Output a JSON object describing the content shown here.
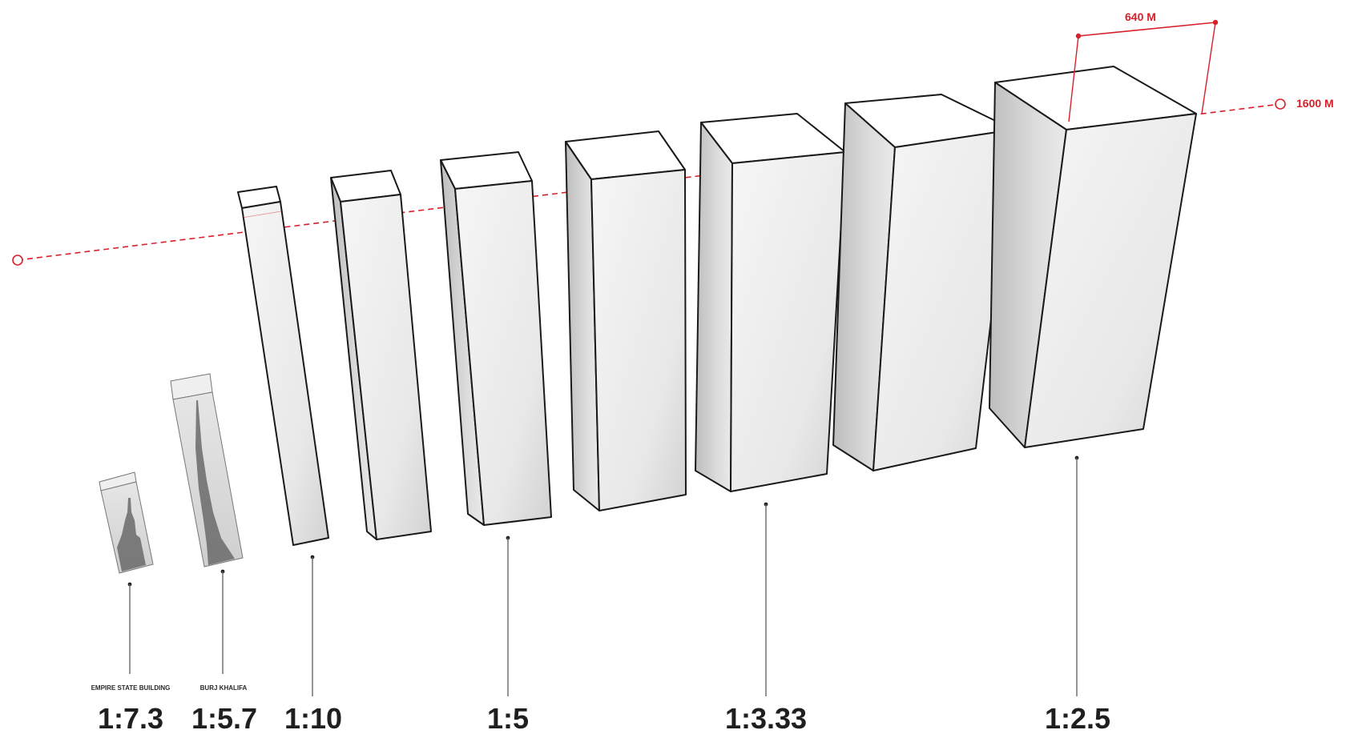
{
  "colors": {
    "accent": "#d9202a",
    "outline": "#1a1a1a",
    "leader": "#555555"
  },
  "annotations": {
    "height_line_label": "1600 M",
    "width_dimension_label": "640 M"
  },
  "buildings": [
    {
      "id": "empire-state",
      "name": "EMPIRE STATE BUILDING",
      "ratio": "1:7.3",
      "has_silhouette": true
    },
    {
      "id": "burj-khalifa",
      "name": "BURJ KHALIFA",
      "ratio": "1:5.7",
      "has_silhouette": true
    },
    {
      "id": "tower-1-10",
      "name": "",
      "ratio": "1:10",
      "has_silhouette": false
    },
    {
      "id": "tower-2",
      "name": "",
      "ratio": "",
      "has_silhouette": false
    },
    {
      "id": "tower-1-5",
      "name": "",
      "ratio": "1:5",
      "has_silhouette": false
    },
    {
      "id": "tower-4",
      "name": "",
      "ratio": "",
      "has_silhouette": false
    },
    {
      "id": "tower-1-333",
      "name": "",
      "ratio": "1:3.33",
      "has_silhouette": false
    },
    {
      "id": "tower-6",
      "name": "",
      "ratio": "",
      "has_silhouette": false
    },
    {
      "id": "tower-1-25",
      "name": "",
      "ratio": "1:2.5",
      "has_silhouette": false
    }
  ]
}
